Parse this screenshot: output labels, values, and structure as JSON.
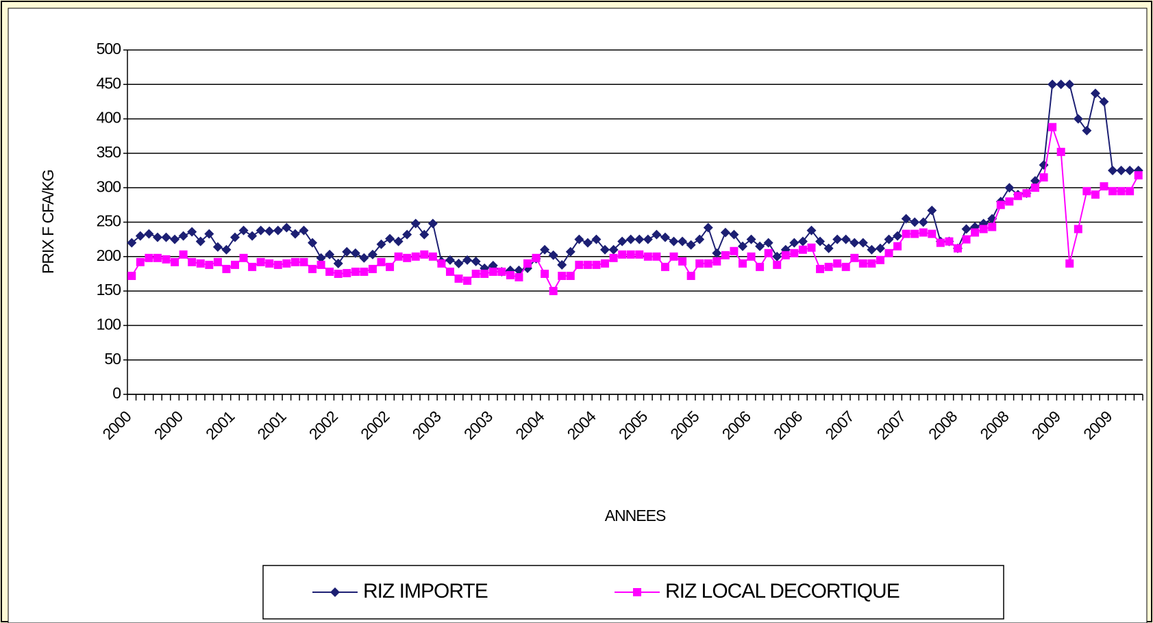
{
  "chart_data": {
    "type": "line",
    "y_label": "PRIX F CFA/KG",
    "x_label": "ANNEES",
    "categories": [
      "2000",
      null,
      null,
      null,
      null,
      null,
      "2000",
      null,
      null,
      null,
      null,
      null,
      "2001",
      null,
      null,
      null,
      null,
      null,
      "2001",
      null,
      null,
      null,
      null,
      null,
      "2002",
      null,
      null,
      null,
      null,
      null,
      "2002",
      null,
      null,
      null,
      null,
      null,
      "2003",
      null,
      null,
      null,
      null,
      null,
      "2003",
      null,
      null,
      null,
      null,
      null,
      "2004",
      null,
      null,
      null,
      null,
      null,
      "2004",
      null,
      null,
      null,
      null,
      null,
      "2005",
      null,
      null,
      null,
      null,
      null,
      "2005",
      null,
      null,
      null,
      null,
      null,
      "2006",
      null,
      null,
      null,
      null,
      null,
      "2006",
      null,
      null,
      null,
      null,
      null,
      "2007",
      null,
      null,
      null,
      null,
      null,
      "2007",
      null,
      null,
      null,
      null,
      null,
      "2008",
      null,
      null,
      null,
      null,
      null,
      "2008",
      null,
      null,
      null,
      null,
      null,
      "2009",
      null,
      null,
      null,
      null,
      null,
      "2009",
      null,
      null,
      null
    ],
    "series": [
      {
        "name": "RIZ IMPORTE",
        "color": "#1c1f73",
        "marker": "diamond",
        "values": [
          220,
          230,
          233,
          228,
          228,
          225,
          230,
          236,
          222,
          233,
          214,
          210,
          228,
          238,
          230,
          238,
          237,
          238,
          242,
          233,
          238,
          220,
          198,
          203,
          190,
          207,
          205,
          198,
          203,
          218,
          226,
          222,
          232,
          248,
          232,
          248,
          193,
          195,
          190,
          195,
          193,
          183,
          187,
          178,
          180,
          180,
          183,
          197,
          210,
          202,
          188,
          207,
          225,
          220,
          225,
          210,
          210,
          222,
          225,
          225,
          225,
          232,
          228,
          222,
          222,
          217,
          225,
          242,
          205,
          235,
          232,
          215,
          225,
          215,
          220,
          200,
          210,
          220,
          222,
          238,
          222,
          212,
          225,
          225,
          220,
          220,
          210,
          212,
          225,
          230,
          255,
          250,
          250,
          267,
          222,
          222,
          212,
          240,
          243,
          248,
          255,
          280,
          300,
          290,
          292,
          310,
          333,
          450,
          450,
          450,
          400,
          383,
          437,
          425,
          325,
          325,
          325,
          325
        ]
      },
      {
        "name": "RIZ LOCAL DECORTIQUE",
        "color": "#ff00ff",
        "marker": "square",
        "values": [
          172,
          192,
          198,
          198,
          196,
          192,
          203,
          192,
          190,
          188,
          192,
          182,
          188,
          198,
          185,
          192,
          190,
          188,
          190,
          192,
          192,
          182,
          188,
          178,
          175,
          176,
          178,
          178,
          182,
          192,
          185,
          200,
          198,
          200,
          203,
          200,
          190,
          178,
          168,
          165,
          175,
          175,
          178,
          178,
          173,
          170,
          190,
          198,
          175,
          150,
          172,
          172,
          188,
          188,
          188,
          190,
          198,
          203,
          203,
          203,
          200,
          200,
          185,
          200,
          193,
          172,
          190,
          190,
          193,
          202,
          208,
          190,
          200,
          185,
          205,
          188,
          202,
          205,
          210,
          213,
          182,
          185,
          190,
          185,
          198,
          190,
          190,
          195,
          205,
          215,
          233,
          233,
          235,
          233,
          220,
          222,
          212,
          225,
          235,
          240,
          243,
          275,
          280,
          288,
          292,
          300,
          315,
          388,
          352,
          190,
          240,
          295,
          290,
          302,
          295,
          295,
          295,
          318
        ]
      }
    ],
    "ylim": [
      0,
      500
    ],
    "yticks": [
      0,
      50,
      100,
      150,
      200,
      250,
      300,
      350,
      400,
      450,
      500
    ],
    "grid": true,
    "legend": "bottom"
  }
}
